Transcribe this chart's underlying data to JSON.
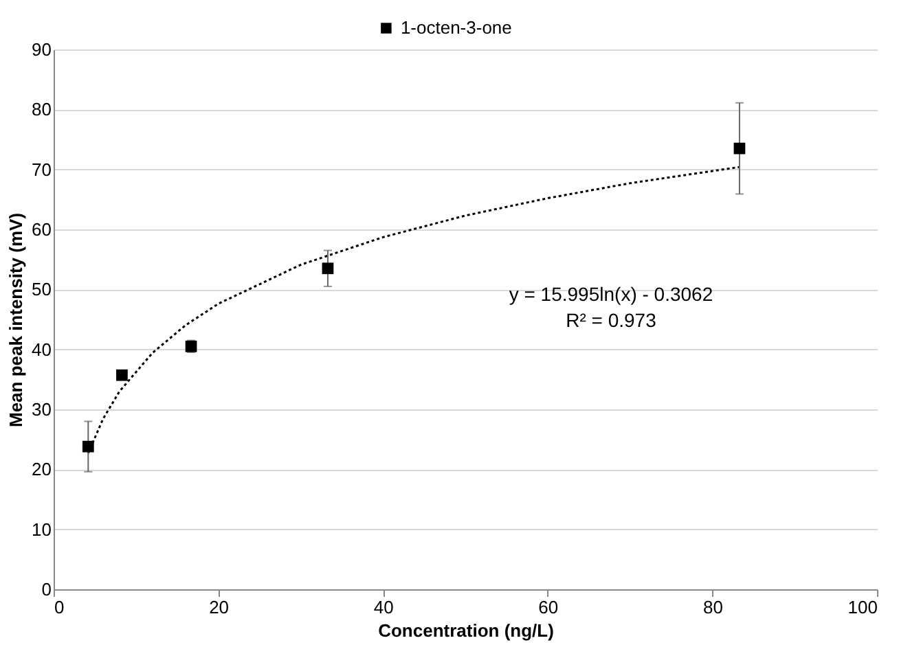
{
  "chart_data": {
    "type": "scatter",
    "xlabel": "Concentration (ng/L)",
    "ylabel": "Mean peak intensity (mV)",
    "xlim": [
      0,
      100
    ],
    "xticks": [
      0,
      20,
      40,
      60,
      80,
      100
    ],
    "ylim": [
      0,
      90
    ],
    "yticks": [
      0,
      10,
      20,
      30,
      40,
      50,
      60,
      70,
      80,
      90
    ],
    "grid": "y",
    "legend": "top",
    "marker": "square",
    "series": [
      {
        "name": "1-octen-3-one",
        "color": "#000000",
        "x": [
          4.2,
          8.3,
          16.7,
          33.3,
          83.3
        ],
        "values": [
          23.8,
          35.7,
          40.5,
          53.5,
          73.5
        ],
        "errors": [
          4.2,
          null,
          1,
          3,
          7.6
        ]
      },
      {
        "type": "line",
        "color": "#000000",
        "line_style": "dotted",
        "marker": "none",
        "x": [
          4.2,
          6,
          8,
          12,
          16,
          20,
          30,
          40,
          50,
          60,
          70,
          83.3
        ],
        "values": [
          22.7,
          28.4,
          33.0,
          39.4,
          44.0,
          47.6,
          54.1,
          58.7,
          62.3,
          65.2,
          67.7,
          70.4
        ]
      }
    ],
    "annotations": [
      "y = 15.995ln(x) - 0.3062",
      "R² = 0.973"
    ]
  }
}
